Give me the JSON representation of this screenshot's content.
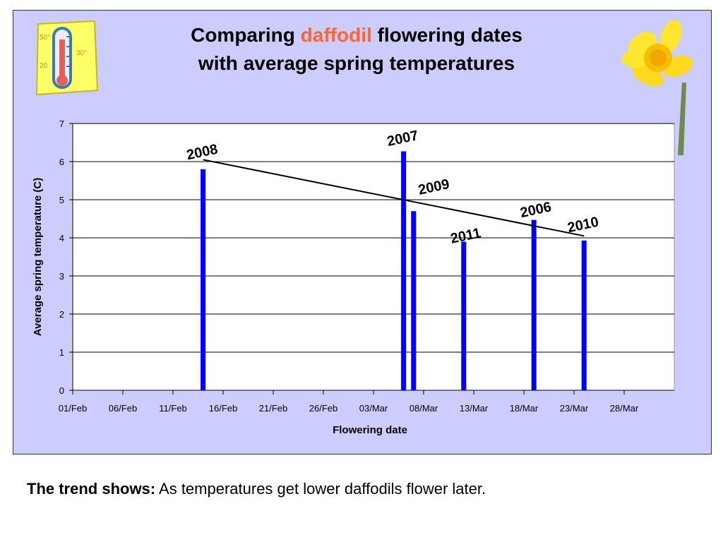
{
  "title": {
    "pre": "Comparing",
    "accent": "daffodil",
    "post": "flowering dates",
    "line2": "with average spring temperatures"
  },
  "colors": {
    "panel": "#ccccff",
    "bar": "#0000ff",
    "accent": "#ff6633"
  },
  "icons": [
    "thermometer-icon",
    "daffodil-flower-icon"
  ],
  "thermometer_labels": [
    "50°",
    "30°",
    "20"
  ],
  "chart_data": {
    "type": "bar",
    "xlabel": "Flowering date",
    "ylabel": "Average spring temperature (C)",
    "ylim": [
      0,
      7
    ],
    "yticks": [
      0,
      1,
      2,
      3,
      4,
      5,
      6,
      7
    ],
    "xticks": [
      "01/Feb",
      "06/Feb",
      "11/Feb",
      "16/Feb",
      "21/Feb",
      "26/Feb",
      "03/Mar",
      "08/Mar",
      "13/Mar",
      "18/Mar",
      "23/Mar",
      "28/Mar"
    ],
    "xlim": [
      "01/Feb",
      "02/Apr"
    ],
    "grid": "horizontal",
    "points": [
      {
        "year": "2008",
        "date": "14/Feb",
        "value": 5.8
      },
      {
        "year": "2007",
        "date": "06/Mar",
        "value": 6.27
      },
      {
        "year": "2009",
        "date": "07/Mar",
        "value": 4.7
      },
      {
        "year": "2011",
        "date": "12/Mar",
        "value": 3.9
      },
      {
        "year": "2006",
        "date": "19/Mar",
        "value": 4.47
      },
      {
        "year": "2010",
        "date": "24/Mar",
        "value": 3.93
      }
    ],
    "trendline": {
      "from": {
        "date": "14/Feb",
        "value": 6.05
      },
      "to": {
        "date": "24/Mar",
        "value": 4.05
      }
    }
  },
  "footer": {
    "lead": "The trend shows:",
    "text": "As temperatures get lower daffodils flower later."
  }
}
